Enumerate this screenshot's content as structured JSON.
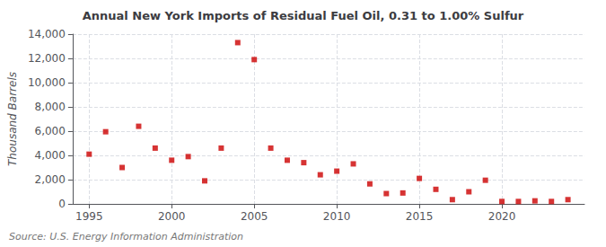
{
  "chart_data": {
    "type": "scatter",
    "title": "Annual New York Imports of Residual Fuel Oil, 0.31 to 1.00% Sulfur",
    "ylabel": "Thousand Barrels",
    "annotation": "Source: U.S. Energy Information Administration",
    "x": [
      1995,
      1996,
      1997,
      1998,
      1999,
      2000,
      2001,
      2002,
      2003,
      2004,
      2005,
      2006,
      2007,
      2008,
      2009,
      2010,
      2011,
      2012,
      2013,
      2014,
      2015,
      2016,
      2017,
      2018,
      2019,
      2020,
      2021,
      2022,
      2023,
      2024
    ],
    "values": [
      4100,
      5950,
      3000,
      6400,
      4600,
      3600,
      3900,
      1900,
      4600,
      13300,
      11900,
      4600,
      3600,
      3400,
      2400,
      2700,
      3300,
      1650,
      850,
      900,
      2100,
      1200,
      350,
      1000,
      1950,
      200,
      200,
      250,
      200,
      350
    ],
    "color": "#cc0000",
    "marker": "square",
    "xlim": [
      1994,
      2025
    ],
    "xticks": [
      1995,
      2000,
      2005,
      2010,
      2015,
      2020
    ],
    "ylim": [
      0,
      14000
    ],
    "yticks": [
      0,
      {
        "value": 2000,
        "label": "2,000"
      },
      {
        "value": 4000,
        "label": "4,000"
      },
      {
        "value": 6000,
        "label": "6,000"
      },
      {
        "value": 8000,
        "label": "8,000"
      },
      {
        "value": 10000,
        "label": "10,000"
      },
      {
        "value": 12000,
        "label": "12,000"
      },
      {
        "value": 14000,
        "label": "14,000"
      }
    ],
    "grid": true
  }
}
